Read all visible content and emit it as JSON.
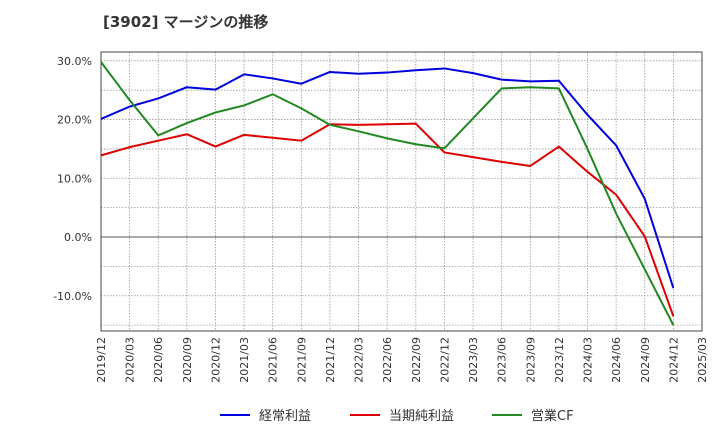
{
  "title": "[3902]  マージンの推移",
  "chart_data": {
    "type": "line",
    "title": "[3902]  マージンの推移",
    "x": [
      "2019/12",
      "2020/03",
      "2020/06",
      "2020/09",
      "2020/12",
      "2021/03",
      "2021/06",
      "2021/09",
      "2021/12",
      "2022/03",
      "2022/06",
      "2022/09",
      "2022/12",
      "2023/03",
      "2023/06",
      "2023/09",
      "2023/12",
      "2024/03",
      "2024/06",
      "2024/09",
      "2024/12",
      "2025/03"
    ],
    "yticks": [
      "30.0%",
      "20.0%",
      "10.0%",
      "0.0%",
      "-10.0%"
    ],
    "ytick_values": [
      30,
      20,
      10,
      0,
      -10
    ],
    "ylim": [
      -16,
      31.5
    ],
    "grid": true,
    "legend_position": "bottom",
    "series": [
      {
        "name": "経常利益",
        "color": "#0000dd",
        "values": [
          20.1,
          22.2,
          23.6,
          25.5,
          25.1,
          27.7,
          27.0,
          26.1,
          28.1,
          27.8,
          28.0,
          28.4,
          28.7,
          27.9,
          26.8,
          26.5,
          26.6,
          20.8,
          15.6,
          6.5,
          -8.7,
          null
        ]
      },
      {
        "name": "当期純利益",
        "color": "#dd0000",
        "values": [
          13.9,
          15.3,
          16.4,
          17.5,
          15.4,
          17.4,
          16.9,
          16.4,
          19.2,
          19.1,
          19.2,
          19.3,
          14.4,
          13.6,
          12.8,
          12.1,
          15.4,
          11.1,
          7.2,
          0.1,
          -13.5,
          null
        ]
      },
      {
        "name": "営業CF",
        "color": "#228822",
        "values": [
          29.8,
          23.3,
          17.3,
          19.4,
          21.2,
          22.4,
          24.3,
          21.9,
          19.1,
          18.0,
          16.8,
          15.8,
          15.1,
          20.2,
          25.3,
          25.5,
          25.3,
          15.0,
          4.0,
          -5.5,
          -15.0,
          null
        ]
      }
    ]
  }
}
